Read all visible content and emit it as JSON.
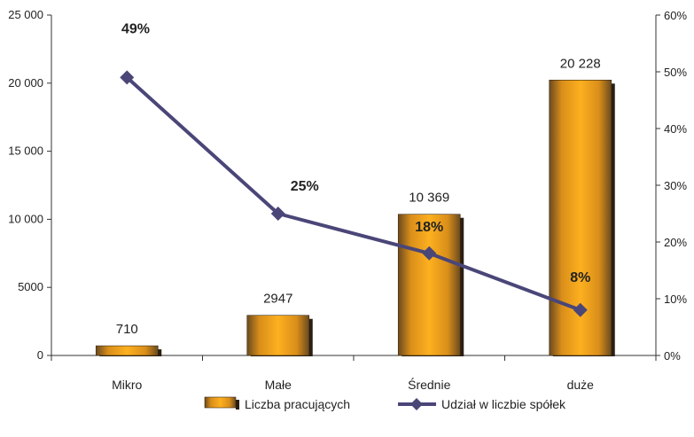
{
  "chart_data": {
    "type": "bar",
    "categories": [
      "Mikro",
      "Małe",
      "Średnie",
      "duże"
    ],
    "series": [
      {
        "name": "Liczba pracujących",
        "type": "bar",
        "axis": "left",
        "values": [
          710,
          2947,
          10369,
          20228
        ],
        "labels": [
          "710",
          "2947",
          "10 369",
          "20 228"
        ],
        "color": "#f5a11c"
      },
      {
        "name": "Udział w liczbie spółek",
        "type": "line",
        "axis": "right",
        "values": [
          49,
          25,
          18,
          8
        ],
        "labels": [
          "49%",
          "25%",
          "18%",
          "8%"
        ],
        "color": "#4a4678"
      }
    ],
    "y_left": {
      "ylim": [
        0,
        25000
      ],
      "ticks": [
        0,
        5000,
        10000,
        15000,
        20000,
        25000
      ],
      "tick_labels": [
        "0",
        "5000",
        "10 000",
        "15 000",
        "20 000",
        "25 000"
      ]
    },
    "y_right": {
      "ylim": [
        0,
        60
      ],
      "ticks": [
        0,
        10,
        20,
        30,
        40,
        50,
        60
      ],
      "tick_labels": [
        "0%",
        "10%",
        "20%",
        "30%",
        "40%",
        "50%",
        "60%"
      ]
    },
    "legend": {
      "placement": "bottom",
      "entries": [
        "Liczba pracujących",
        "Udział w liczbie spółek"
      ]
    },
    "grid": false,
    "title": "",
    "xlabel": "",
    "ylabel": ""
  }
}
